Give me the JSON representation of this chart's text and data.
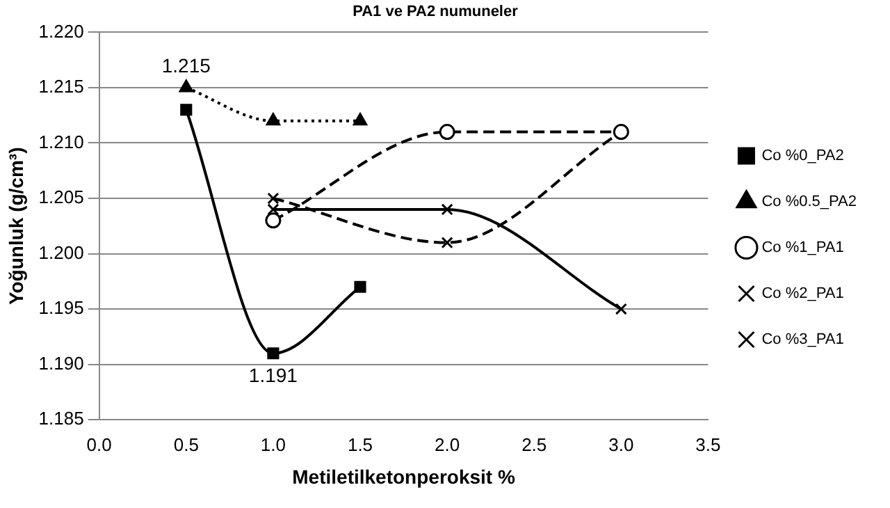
{
  "chart_data": {
    "type": "line",
    "title": "PA1 ve PA2 numuneler",
    "xlabel": "Metiletilketonperoksit %",
    "ylabel": "Yoğunluk (g/cm³)",
    "series": [
      {
        "name": "Co %0_PA2",
        "color": "#000000",
        "x": [
          0.5,
          1.0,
          1.5
        ],
        "values": [
          1.213,
          1.191,
          1.197
        ],
        "marker": "square",
        "line_style": "solid"
      },
      {
        "name": "Co %0.5_PA2",
        "color": "#000000",
        "x": [
          0.5,
          1.0,
          1.5
        ],
        "values": [
          1.215,
          1.212,
          1.212
        ],
        "marker": "triangle",
        "line_style": "dotted"
      },
      {
        "name": "Co %1_PA1",
        "color": "#000000",
        "x": [
          1.0,
          2.0,
          3.0
        ],
        "values": [
          1.203,
          1.211,
          1.211
        ],
        "marker": "circle",
        "line_style": "dashed"
      },
      {
        "name": "Co %2_PA1",
        "color": "#000000",
        "x": [
          1.0,
          2.0,
          3.0
        ],
        "values": [
          1.205,
          1.201,
          1.211
        ],
        "marker": "cross",
        "line_style": "dashed"
      },
      {
        "name": "Co %3_PA1",
        "color": "#000000",
        "x": [
          1.0,
          2.0,
          3.0
        ],
        "values": [
          1.204,
          1.204,
          1.195
        ],
        "marker": "cross",
        "line_style": "solid"
      }
    ],
    "xlim": [
      0,
      3.5
    ],
    "xticks": [
      {
        "value": 0,
        "label": "0.0"
      },
      {
        "value": 0.5,
        "label": "0.5"
      },
      {
        "value": 1,
        "label": "1.0"
      },
      {
        "value": 1.5,
        "label": "1.5"
      },
      {
        "value": 2,
        "label": "2.0"
      },
      {
        "value": 2.5,
        "label": "2.5"
      },
      {
        "value": 3,
        "label": "3.0"
      },
      {
        "value": 3.5,
        "label": "3.5"
      }
    ],
    "ylim": [
      1.185,
      1.22
    ],
    "yticks": [
      {
        "value": 1.185,
        "label": "1.185"
      },
      {
        "value": 1.19,
        "label": "1.190"
      },
      {
        "value": 1.195,
        "label": "1.195"
      },
      {
        "value": 1.2,
        "label": "1.200"
      },
      {
        "value": 1.205,
        "label": "1.205"
      },
      {
        "value": 1.21,
        "label": "1.210"
      },
      {
        "value": 1.215,
        "label": "1.215"
      },
      {
        "value": 1.22,
        "label": "1.220"
      }
    ],
    "grid": "y",
    "legend": "right",
    "annotations": [
      {
        "text": "1.215",
        "x": 0.5,
        "y": 1.215
      },
      {
        "text": "1.191",
        "x": 1.0,
        "y": 1.191
      }
    ]
  }
}
